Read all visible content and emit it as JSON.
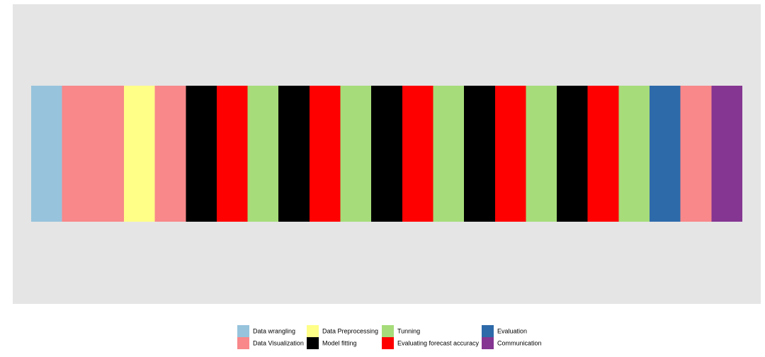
{
  "chart_data": {
    "type": "timeline",
    "xlim": [
      0,
      23
    ],
    "series": [
      {
        "name": "Data wrangling",
        "color": "#97c3dc",
        "segments": [
          [
            0,
            1
          ]
        ]
      },
      {
        "name": "Data Visualization",
        "color": "#f8888a",
        "segments": [
          [
            1,
            3
          ],
          [
            4,
            5
          ],
          [
            21,
            22
          ]
        ]
      },
      {
        "name": "Data Preprocessing",
        "color": "#ffff88",
        "segments": [
          [
            3,
            4
          ]
        ]
      },
      {
        "name": "Model fitting",
        "color": "#000000",
        "segments": [
          [
            5,
            6
          ],
          [
            8,
            9
          ],
          [
            11,
            12
          ],
          [
            14,
            15
          ],
          [
            17,
            18
          ]
        ]
      },
      {
        "name": "Tunning",
        "color": "#a6dc7a",
        "segments": [
          [
            7,
            8
          ],
          [
            10,
            11
          ],
          [
            13,
            14
          ],
          [
            16,
            17
          ],
          [
            19,
            20
          ]
        ]
      },
      {
        "name": "Evaluating forecast accuracy",
        "color": "#ff0000",
        "segments": [
          [
            6,
            7
          ],
          [
            9,
            10
          ],
          [
            12,
            13
          ],
          [
            15,
            16
          ],
          [
            18,
            19
          ]
        ]
      },
      {
        "name": "Evaluation",
        "color": "#2d6aa9",
        "segments": [
          [
            20,
            21
          ]
        ]
      },
      {
        "name": "Communication",
        "color": "#853692",
        "segments": [
          [
            22,
            23
          ]
        ]
      }
    ]
  }
}
